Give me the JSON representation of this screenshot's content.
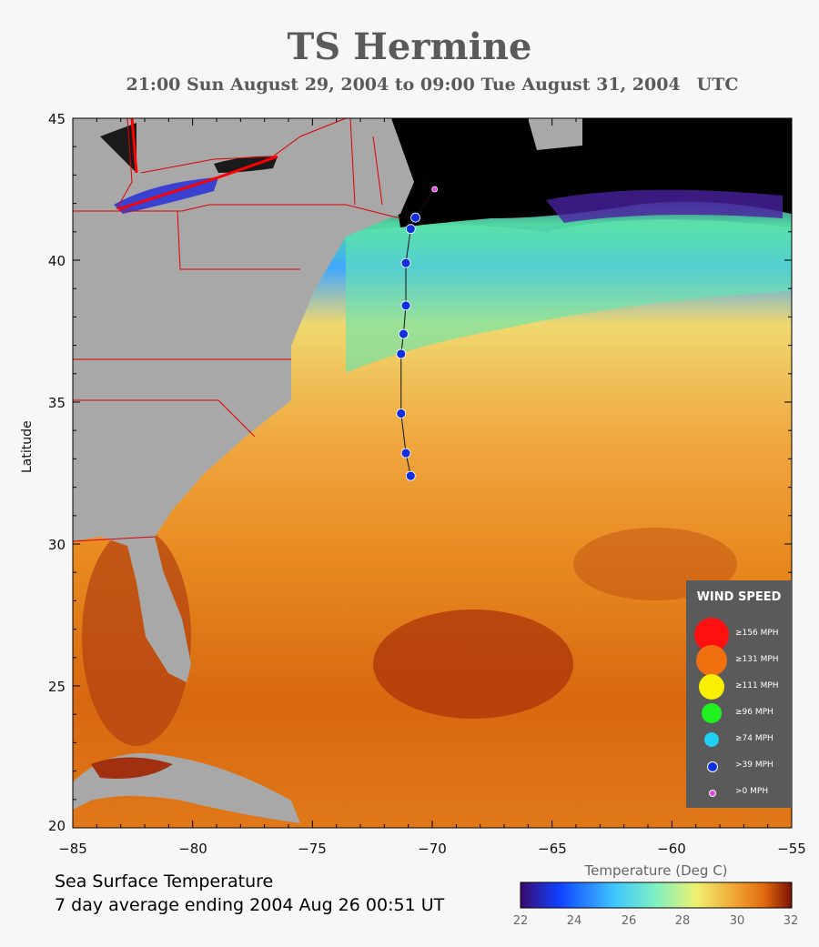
{
  "title": "TS Hermine",
  "subtitle": "21:00 Sun August 29, 2004 to 09:00 Tue August 31, 2004",
  "subtitle_tz": "UTC",
  "axis": {
    "ylabel": "Latitude",
    "lat_ticks": [
      "45",
      "40",
      "35",
      "30",
      "25",
      "20"
    ],
    "lon_ticks": [
      "−85",
      "−80",
      "−75",
      "−70",
      "−65",
      "−60",
      "−55"
    ],
    "lon_range": [
      -85,
      -55
    ],
    "lat_range": [
      20,
      45
    ]
  },
  "product": {
    "line1": "Sea Surface Temperature",
    "line2": "7 day average ending 2004 Aug 26 00:51 UT"
  },
  "colorbar": {
    "title": "Temperature (Deg C)",
    "ticks": [
      "22",
      "24",
      "26",
      "28",
      "30",
      "32"
    ],
    "colors": [
      "#3a0a6e",
      "#1040ff",
      "#40c8ff",
      "#80f0c0",
      "#f0f070",
      "#f0a030",
      "#e06a10",
      "#7a1000"
    ]
  },
  "legend": {
    "title": "WIND SPEED",
    "items": [
      {
        "label": "≥156 MPH",
        "color": "#ff1010"
      },
      {
        "label": "≥131 MPH",
        "color": "#f07010"
      },
      {
        "label": "≥111 MPH",
        "color": "#f8f000"
      },
      {
        "label": "≥96 MPH",
        "color": "#20f020"
      },
      {
        "label": "≥74 MPH",
        "color": "#20d0f0"
      },
      {
        "label": ">39 MPH",
        "color": "#1030e0"
      },
      {
        "label": ">0 MPH",
        "color": "#e040e0"
      }
    ]
  },
  "track": [
    {
      "lon": -70.9,
      "lat": 32.4,
      "class": ">39 MPH"
    },
    {
      "lon": -71.1,
      "lat": 33.2,
      "class": ">39 MPH"
    },
    {
      "lon": -71.3,
      "lat": 34.6,
      "class": ">39 MPH"
    },
    {
      "lon": -71.3,
      "lat": 36.7,
      "class": ">39 MPH"
    },
    {
      "lon": -71.2,
      "lat": 37.4,
      "class": ">39 MPH"
    },
    {
      "lon": -71.1,
      "lat": 38.4,
      "class": ">39 MPH"
    },
    {
      "lon": -71.1,
      "lat": 39.9,
      "class": ">39 MPH"
    },
    {
      "lon": -70.9,
      "lat": 41.1,
      "class": ">39 MPH"
    },
    {
      "lon": -70.7,
      "lat": 41.5,
      "class": ">39 MPH"
    },
    {
      "lon": -69.9,
      "lat": 42.5,
      "class": ">0 MPH"
    }
  ]
}
